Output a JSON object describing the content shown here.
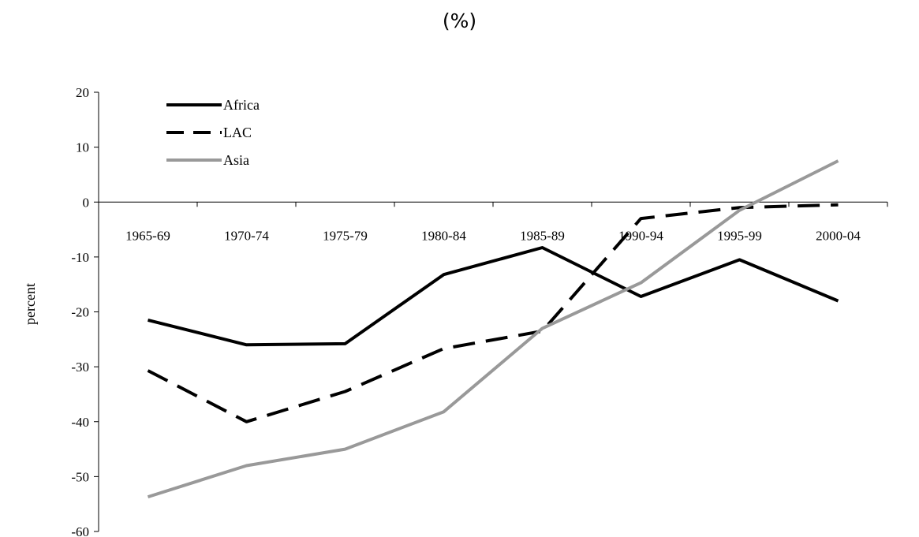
{
  "title": "(%)",
  "chart_data": {
    "type": "line",
    "title": "(%)",
    "xlabel": "",
    "ylabel": "percent",
    "ylim": [
      -60,
      20
    ],
    "yticks": [
      20,
      10,
      0,
      -10,
      -20,
      -30,
      -40,
      -50,
      -60
    ],
    "categories": [
      "1965-69",
      "1970-74",
      "1975-79",
      "1980-84",
      "1985-89",
      "1990-94",
      "1995-99",
      "2000-04"
    ],
    "grid": false,
    "legend_position": "top-left",
    "series": [
      {
        "name": "Africa",
        "color": "#000000",
        "dash": "solid",
        "values": [
          -21.5,
          -26,
          -25.8,
          -13.2,
          -8.3,
          -17.2,
          -10.5,
          -18
        ]
      },
      {
        "name": "LAC",
        "color": "#000000",
        "dash": "dashed",
        "values": [
          -30.7,
          -40,
          -34.5,
          -26.7,
          -23.5,
          -3,
          -1,
          -0.5
        ]
      },
      {
        "name": "Asia",
        "color": "#999999",
        "dash": "solid",
        "values": [
          -53.7,
          -48,
          -45,
          -38.2,
          -23,
          -14.7,
          -1.5,
          7.5
        ]
      }
    ]
  }
}
